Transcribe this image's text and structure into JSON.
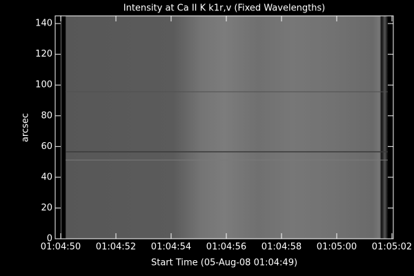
{
  "chart_data": {
    "type": "image",
    "title": "Intensity at Ca II K k1r,v (Fixed Wavelengths)",
    "x_label": "Start Time (05-Aug-08 01:04:49)",
    "y_label": "arcsec",
    "xticks": [
      "01:04:50",
      "01:04:52",
      "01:04:54",
      "01:04:56",
      "01:04:58",
      "01:05:00",
      "01:05:02"
    ],
    "ylim": [
      0,
      145
    ],
    "yticks": [
      0,
      20,
      40,
      60,
      80,
      100,
      120,
      140
    ]
  }
}
